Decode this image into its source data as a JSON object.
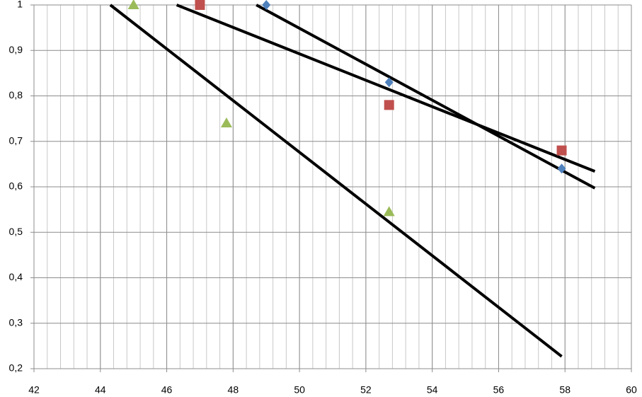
{
  "chart_data": {
    "type": "scatter",
    "xlim": [
      42,
      60
    ],
    "xticks": [
      42,
      44,
      46,
      48,
      50,
      52,
      54,
      56,
      58,
      60
    ],
    "ylim": [
      0.2,
      1
    ],
    "yticks": [
      {
        "value": 0.2,
        "label": "0,2"
      },
      {
        "value": 0.3,
        "label": "0,3"
      },
      {
        "value": 0.4,
        "label": "0,4"
      },
      {
        "value": 0.5,
        "label": "0,5"
      },
      {
        "value": 0.6,
        "label": "0,6"
      },
      {
        "value": 0.7,
        "label": "0,7"
      },
      {
        "value": 0.8,
        "label": "0,8"
      },
      {
        "value": 0.9,
        "label": "0,9"
      },
      1
    ],
    "grid": true,
    "x_minor_grid_step": 0.4,
    "series": [
      {
        "color": "#4f81bd",
        "marker": "diamond",
        "x": [
          49,
          52.7,
          57.9
        ],
        "values": [
          1.0,
          0.83,
          0.64
        ]
      },
      {
        "color": "#c0504d",
        "marker": "square",
        "x": [
          47,
          52.7,
          57.9
        ],
        "values": [
          1.0,
          0.78,
          0.68
        ]
      },
      {
        "color": "#9bbb59",
        "marker": "triangle",
        "x": [
          45,
          47.8,
          52.7
        ],
        "values": [
          1.0,
          0.74,
          0.545
        ]
      }
    ],
    "trendlines": [
      {
        "color": "#000000",
        "x": [
          48.7,
          58.9
        ],
        "y": [
          1.0,
          0.597
        ]
      },
      {
        "color": "#000000",
        "x": [
          46.3,
          58.9
        ],
        "y": [
          1.0,
          0.634
        ]
      },
      {
        "color": "#000000",
        "x": [
          44.3,
          57.9
        ],
        "y": [
          1.0,
          0.227
        ]
      }
    ]
  }
}
